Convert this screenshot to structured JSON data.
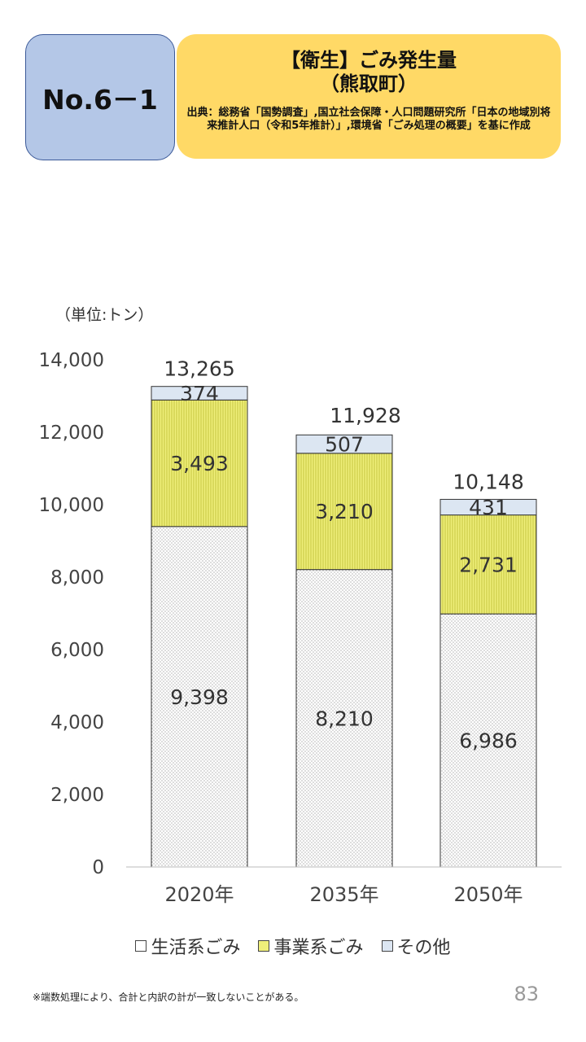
{
  "header": {
    "badge": "No.6－1",
    "title": "【衛生】ごみ発生量",
    "subtitle": "（熊取町）",
    "source": "出典：総務省「国勢調査」,国立社会保障・人口問題研究所「日本の地域別将来推計人口（令和5年推計）」,環境省「ごみ処理の概要」を基に作成"
  },
  "unit_label": "（単位:トン）",
  "chart_data": {
    "type": "bar",
    "stacked": true,
    "categories": [
      "2020年",
      "2035年",
      "2050年"
    ],
    "series": [
      {
        "name": "生活系ごみ",
        "values": [
          9398,
          8210,
          6986
        ],
        "labels": [
          "9,398",
          "8,210",
          "6,986"
        ],
        "color": "#ffffff",
        "pattern": "dots"
      },
      {
        "name": "事業系ごみ",
        "values": [
          3493,
          3210,
          2731
        ],
        "labels": [
          "3,493",
          "3,210",
          "2,731"
        ],
        "color": "#efef7a",
        "pattern": "vertical-lines"
      },
      {
        "name": "その他",
        "values": [
          374,
          507,
          431
        ],
        "labels": [
          "374",
          "507",
          "431"
        ],
        "color": "#dce6f2",
        "pattern": "none"
      }
    ],
    "totals": [
      13265,
      11928,
      10148
    ],
    "total_labels": [
      "13,265",
      "11,928",
      "10,148"
    ],
    "ylim": [
      0,
      14000
    ],
    "yticks": [
      0,
      2000,
      4000,
      6000,
      8000,
      10000,
      12000,
      14000
    ],
    "ytick_labels": [
      "0",
      "2,000",
      "4,000",
      "6,000",
      "8,000",
      "10,000",
      "12,000",
      "14,000"
    ],
    "grid": false,
    "legend": "bottom"
  },
  "footnote": "※端数処理により、合計と内訳の計が一致しないことがある。",
  "page_number": "83"
}
